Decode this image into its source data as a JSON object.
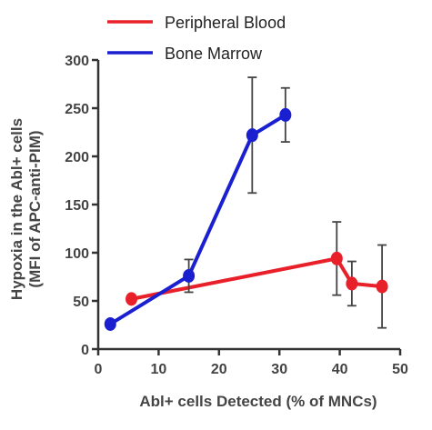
{
  "chart_data": {
    "type": "line",
    "xlabel": "Abl+ cells Detected (% of MNCs)",
    "ylabel_lines": [
      "Hypoxia in the Abl+ cells",
      "(MFI of APC-anti-PIM)"
    ],
    "xlim": [
      0,
      50
    ],
    "ylim": [
      0,
      300
    ],
    "xticks": [
      0,
      10,
      20,
      30,
      40,
      50
    ],
    "yticks": [
      0,
      50,
      100,
      150,
      200,
      250,
      300
    ],
    "grid": false,
    "legend_position": "top-left",
    "series": [
      {
        "name": "Peripheral Blood",
        "color": "#e8202a",
        "points": [
          {
            "x": 5.5,
            "y": 52,
            "err": 0
          },
          {
            "x": 39.5,
            "y": 94,
            "err": 38
          },
          {
            "x": 42.0,
            "y": 68,
            "err": 23
          },
          {
            "x": 47.0,
            "y": 65,
            "err": 43
          }
        ]
      },
      {
        "name": "Bone Marrow",
        "color": "#1a1fd0",
        "points": [
          {
            "x": 2.0,
            "y": 26,
            "err": 0
          },
          {
            "x": 15.0,
            "y": 76,
            "err": 17
          },
          {
            "x": 25.5,
            "y": 222,
            "err": 60
          },
          {
            "x": 31.0,
            "y": 243,
            "err": 28
          }
        ]
      }
    ]
  }
}
